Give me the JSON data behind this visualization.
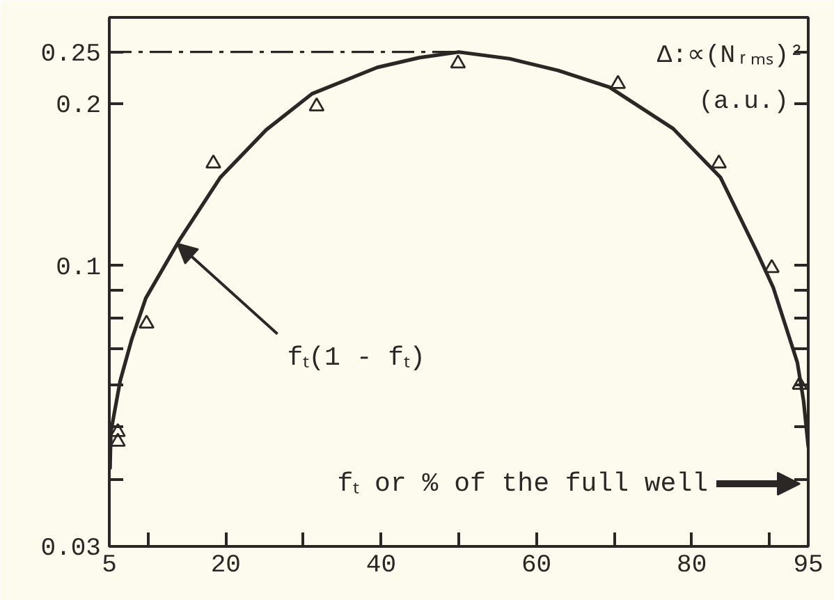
{
  "chart_data": {
    "type": "line",
    "xlabel": "fₜ or % of the full well",
    "ylabel": "Δ:∝(Nᵣₘₛ)²\n(a.u.)",
    "log": "y",
    "xlim": [
      5,
      95
    ],
    "xticks": [
      5,
      {
        "value": 10,
        "label": null
      },
      20,
      {
        "value": 30,
        "label": null
      },
      40,
      {
        "value": 50,
        "label": null
      },
      60,
      {
        "value": 70,
        "label": null
      },
      80,
      {
        "value": 90,
        "label": null
      },
      95
    ],
    "ylim": [
      0.03,
      0.29
    ],
    "yticks": [
      0.03,
      {
        "value": 0.04,
        "label": null
      },
      {
        "value": 0.05,
        "label": null
      },
      {
        "value": 0.06,
        "label": null
      },
      {
        "value": 0.07,
        "label": null
      },
      {
        "value": 0.08,
        "label": null
      },
      {
        "value": 0.09,
        "label": null
      },
      0.1,
      0.2,
      0.25
    ],
    "series": [
      {
        "color": "#2b2725",
        "marker": "none",
        "line_style": "solid",
        "x": [
          5.1,
          5.2,
          6.4,
          7.9,
          9.7,
          14.1,
          19.3,
          25.2,
          31.1,
          39.5,
          44.9,
          50,
          56.5,
          62.8,
          69.4,
          77.6,
          83.7,
          88.4,
          90.5,
          93.6,
          94.4,
          95
        ],
        "values": [
          0.042,
          0.049,
          0.061,
          0.073,
          0.087,
          0.112,
          0.146,
          0.179,
          0.209,
          0.234,
          0.244,
          0.25,
          0.243,
          0.231,
          0.215,
          0.18,
          0.146,
          0.106,
          0.091,
          0.066,
          0.056,
          0.046
        ]
      },
      {
        "type": "scatter",
        "color": "#2b2725",
        "marker": "triangle",
        "x": [
          6.1,
          6.1,
          9.8,
          18.4,
          31.7,
          49.9,
          70.5,
          83.5,
          90.3,
          93.9
        ],
        "values": [
          0.049,
          0.047,
          0.078,
          0.155,
          0.198,
          0.238,
          0.218,
          0.155,
          0.099,
          0.06
        ]
      }
    ],
    "ref_lines": [
      {
        "axis": "y",
        "value": 0.25,
        "line_style": "dashdot",
        "color": "#2b2725"
      }
    ],
    "annotations": [
      {
        "text": "fₜ(1 - fₜ)",
        "x": 14.1,
        "y": 0.112
      }
    ]
  }
}
